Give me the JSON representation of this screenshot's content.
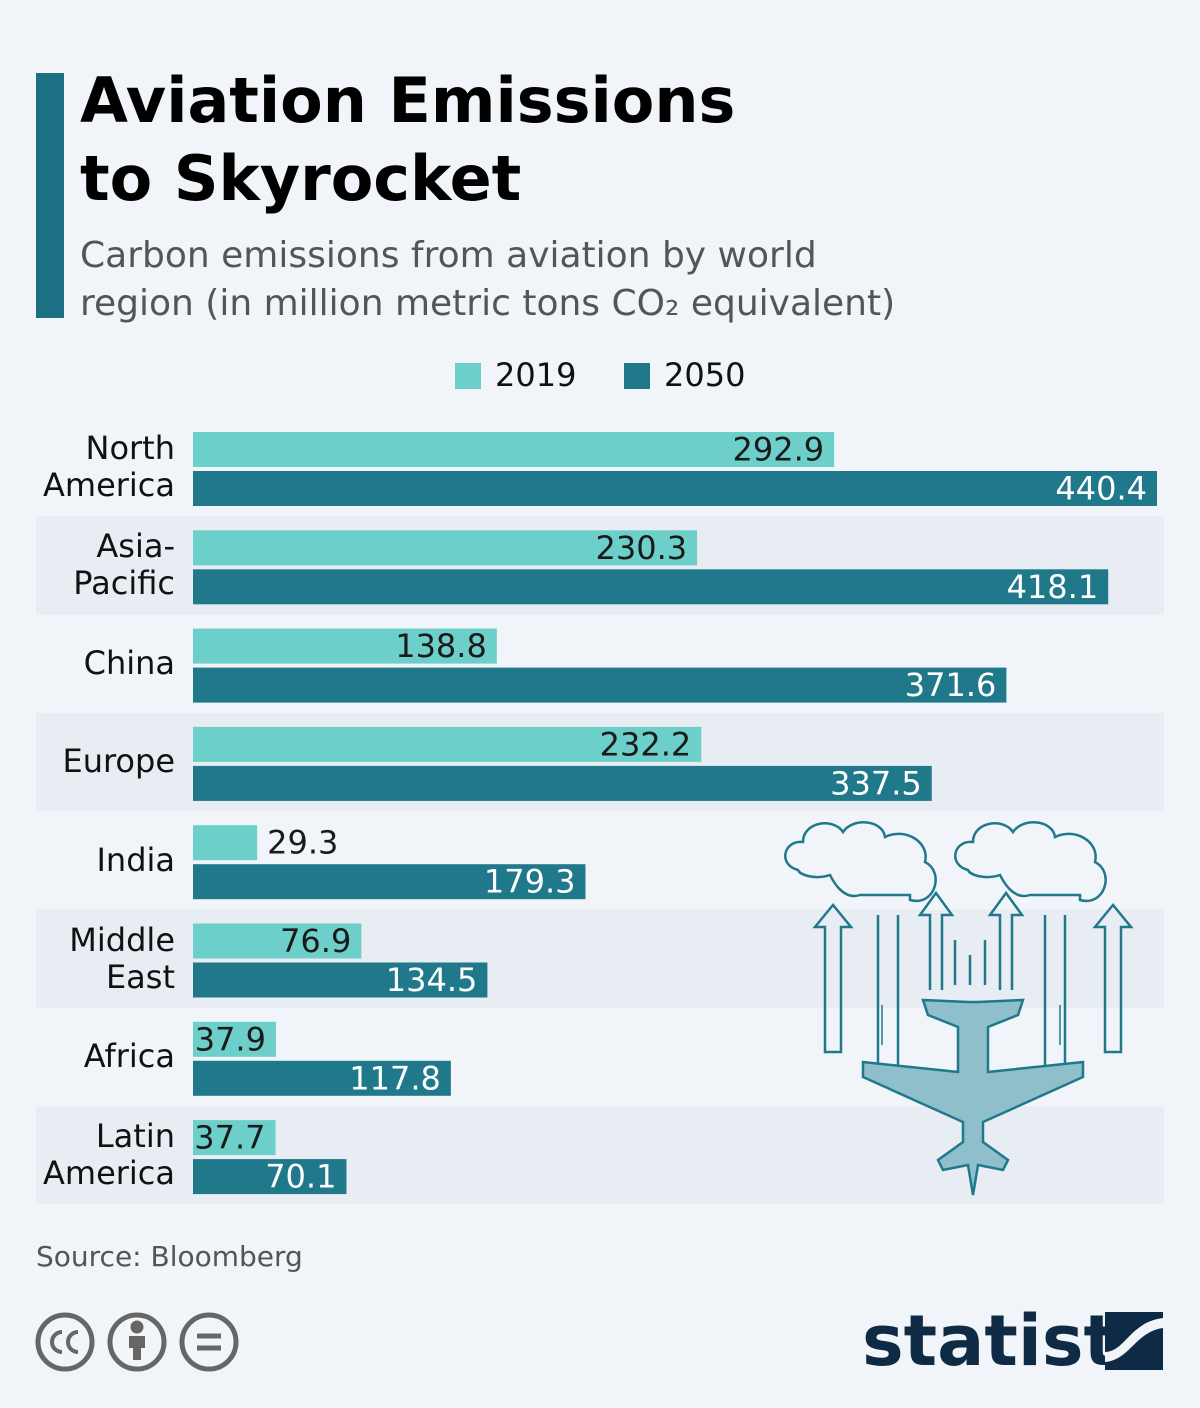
{
  "chart_data": {
    "type": "bar",
    "title": "Aviation Emissions to Skyrocket",
    "subtitle": "Carbon emissions from aviation by world region (in million metric tons CO₂ equivalent)",
    "categories": [
      "North America",
      "Asia-Pacific",
      "China",
      "Europe",
      "India",
      "Middle East",
      "Africa",
      "Latin America"
    ],
    "series": [
      {
        "name": "2019",
        "color": "#6dcfc9",
        "values": [
          292.9,
          230.3,
          138.8,
          232.2,
          29.3,
          76.9,
          37.9,
          37.7
        ]
      },
      {
        "name": "2050",
        "color": "#1f798b",
        "values": [
          440.4,
          418.1,
          371.6,
          337.5,
          179.3,
          134.5,
          117.8,
          70.1
        ]
      }
    ],
    "source": "Source: Bloomberg"
  },
  "footer": {
    "brand": "statista"
  }
}
